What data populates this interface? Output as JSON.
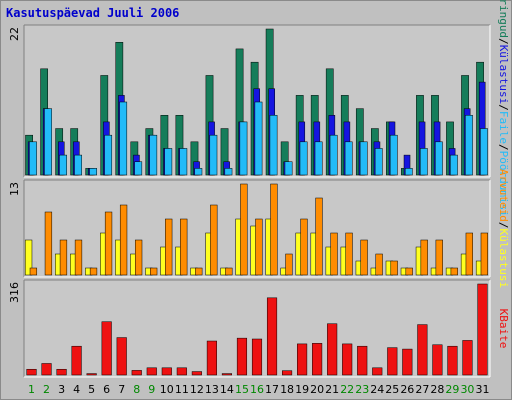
{
  "title": "Kasutuspäevad Juuli 2006",
  "colors": {
    "background": "#c0c0c0",
    "panel": "#c8c8c8",
    "weekday_label": "#006600",
    "weekend_label": "#008800",
    "unique": "#ffb055",
    "visits": "#f3a020"
  },
  "chart_data": [
    {
      "type": "bar",
      "panel": "top",
      "ymax_label": "22",
      "categories": [
        "1",
        "2",
        "3",
        "4",
        "5",
        "6",
        "7",
        "8",
        "9",
        "10",
        "11",
        "12",
        "13",
        "14",
        "15",
        "16",
        "17",
        "18",
        "19",
        "20",
        "21",
        "22",
        "23",
        "24",
        "25",
        "26",
        "27",
        "28",
        "29",
        "30",
        "31"
      ],
      "series": [
        {
          "name": "Päringud",
          "color": "#157d5a",
          "values": [
            6,
            16,
            7,
            7,
            1,
            15,
            20,
            5,
            7,
            9,
            9,
            5,
            15,
            7,
            19,
            17,
            22,
            5,
            12,
            12,
            16,
            12,
            10,
            7,
            8,
            1,
            12,
            12,
            8,
            15,
            17
          ]
        },
        {
          "name": "Külastused",
          "color": "#1515e0",
          "values": [
            5,
            10,
            5,
            5,
            1,
            8,
            12,
            3,
            6,
            4,
            4,
            2,
            8,
            2,
            8,
            13,
            13,
            2,
            8,
            8,
            9,
            8,
            5,
            5,
            8,
            3,
            8,
            8,
            4,
            10,
            14
          ]
        },
        {
          "name": "Faile",
          "color": "#22bbf8",
          "values": [
            5,
            10,
            3,
            3,
            1,
            6,
            11,
            2,
            6,
            4,
            4,
            1,
            6,
            1,
            8,
            11,
            9,
            2,
            5,
            5,
            6,
            5,
            5,
            4,
            6,
            1,
            4,
            5,
            3,
            9,
            7
          ]
        }
      ]
    },
    {
      "type": "bar",
      "panel": "middle",
      "ymax_label": "13",
      "categories": [
        "1",
        "2",
        "3",
        "4",
        "5",
        "6",
        "7",
        "8",
        "9",
        "10",
        "11",
        "12",
        "13",
        "14",
        "15",
        "16",
        "17",
        "18",
        "19",
        "20",
        "21",
        "22",
        "23",
        "24",
        "25",
        "26",
        "27",
        "28",
        "29",
        "30",
        "31"
      ],
      "series": [
        {
          "name": "Arvuteid",
          "color": "#ffff20",
          "values": [
            5,
            0,
            3,
            3,
            1,
            6,
            5,
            3,
            1,
            4,
            4,
            1,
            6,
            1,
            8,
            7,
            8,
            1,
            6,
            6,
            4,
            4,
            2,
            1,
            2,
            1,
            4,
            1,
            1,
            3,
            2
          ]
        },
        {
          "name": "Külastusi",
          "color": "#ff8c00",
          "values": [
            1,
            9,
            5,
            5,
            1,
            9,
            10,
            5,
            1,
            8,
            8,
            1,
            10,
            1,
            13,
            8,
            13,
            3,
            8,
            11,
            6,
            6,
            5,
            3,
            2,
            1,
            5,
            5,
            1,
            6,
            6
          ]
        }
      ]
    },
    {
      "type": "bar",
      "panel": "bottom",
      "ymax_label": "316",
      "categories": [
        "1",
        "2",
        "3",
        "4",
        "5",
        "6",
        "7",
        "8",
        "9",
        "10",
        "11",
        "12",
        "13",
        "14",
        "15",
        "16",
        "17",
        "18",
        "19",
        "20",
        "21",
        "22",
        "23",
        "24",
        "25",
        "26",
        "27",
        "28",
        "29",
        "30",
        "31"
      ],
      "series": [
        {
          "name": "KBaite",
          "color": "#ee1111",
          "values": [
            20,
            40,
            20,
            100,
            5,
            185,
            130,
            16,
            25,
            25,
            25,
            12,
            118,
            5,
            128,
            125,
            268,
            15,
            108,
            110,
            178,
            108,
            100,
            25,
            95,
            90,
            175,
            105,
            100,
            120,
            316
          ]
        }
      ]
    }
  ],
  "side_labels": {
    "top": [
      "Päringud",
      "Külastusi",
      "Faile",
      "Pöördumisi"
    ],
    "top_sep": "/",
    "middle": [
      "Arvuteid",
      "Külastusi"
    ],
    "middle_sep": "/",
    "bottom": [
      "KBaite"
    ]
  },
  "weekend_days": [
    "1",
    "2",
    "8",
    "9",
    "15",
    "16",
    "22",
    "23",
    "29",
    "30"
  ]
}
